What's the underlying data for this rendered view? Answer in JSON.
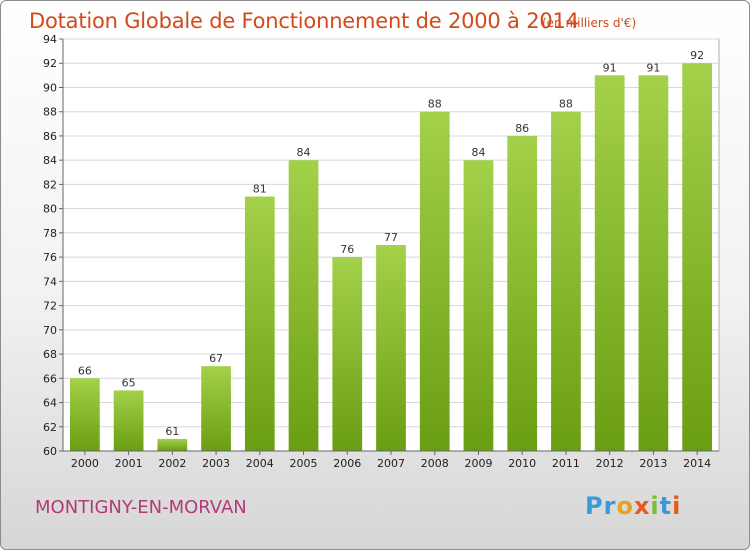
{
  "header": {
    "title": "Dotation Globale de Fonctionnement de 2000 à 2014",
    "subtitle": "(en milliers d'€)"
  },
  "footer": {
    "commune": "MONTIGNY-EN-MORVAN",
    "logo_letters": [
      {
        "ch": "P",
        "color": "#3a9ad9"
      },
      {
        "ch": "r",
        "color": "#3a9ad9"
      },
      {
        "ch": "o",
        "color": "#e8a21c"
      },
      {
        "ch": "x",
        "color": "#e85a1c"
      },
      {
        "ch": "i",
        "color": "#7bbf2a"
      },
      {
        "ch": "t",
        "color": "#3a9ad9"
      },
      {
        "ch": "i",
        "color": "#e85a1c"
      }
    ]
  },
  "colors": {
    "bar_top": "#a3d14a",
    "bar_bottom": "#6a9e12",
    "title": "#d24a1a",
    "commune": "#b23a7a"
  },
  "chart_data": {
    "type": "bar",
    "categories": [
      "2000",
      "2001",
      "2002",
      "2003",
      "2004",
      "2005",
      "2006",
      "2007",
      "2008",
      "2009",
      "2010",
      "2011",
      "2012",
      "2013",
      "2014"
    ],
    "values": [
      66,
      65,
      61,
      67,
      81,
      84,
      76,
      77,
      88,
      84,
      86,
      88,
      91,
      91,
      92
    ],
    "y_ticks": [
      60,
      62,
      64,
      66,
      68,
      70,
      72,
      74,
      76,
      78,
      80,
      82,
      84,
      86,
      88,
      90,
      92,
      94
    ],
    "ylim": [
      60,
      94
    ],
    "grid": true,
    "legend": "none"
  }
}
